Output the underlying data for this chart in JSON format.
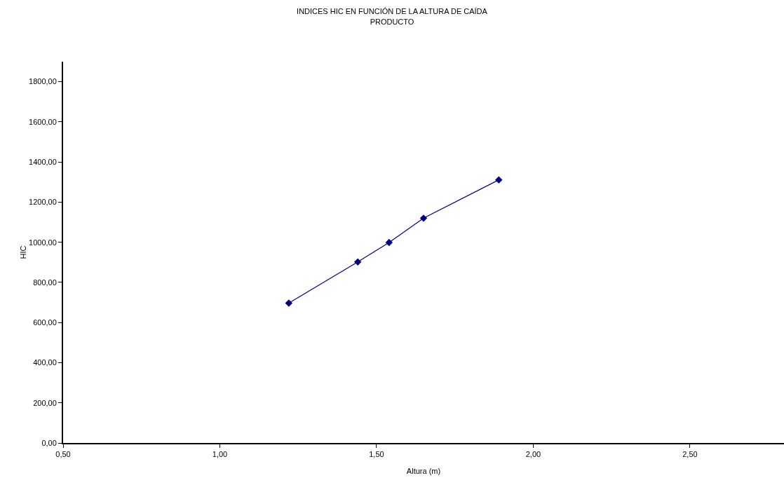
{
  "chart_data": {
    "type": "line",
    "title": "INDICES HIC EN FUNCIÓN DE LA ALTURA DE CAÍDA\nPRODUCTO",
    "xlabel": "Altura (m)",
    "ylabel": "HIC",
    "x": [
      1.22,
      1.44,
      1.54,
      1.65,
      1.89
    ],
    "series": [
      {
        "color": "#000080",
        "values": [
          697,
          902,
          999,
          1120,
          1311
        ]
      }
    ],
    "xlim": [
      0.5,
      2.8
    ],
    "xticks": [
      {
        "value": 0.5,
        "label": "0,50"
      },
      {
        "value": 1,
        "label": "1,00"
      },
      {
        "value": 1.5,
        "label": "1,50"
      },
      {
        "value": 2,
        "label": "2,00"
      },
      {
        "value": 2.5,
        "label": "2,50"
      }
    ],
    "ylim": [
      0,
      1900
    ],
    "yticks": [
      {
        "value": 0,
        "label": "0,00"
      },
      {
        "value": 200,
        "label": "200,00"
      },
      {
        "value": 400,
        "label": "400,00"
      },
      {
        "value": 600,
        "label": "600,00"
      },
      {
        "value": 800,
        "label": "800,00"
      },
      {
        "value": 1000,
        "label": "1000,00"
      },
      {
        "value": 1200,
        "label": "1200,00"
      },
      {
        "value": 1400,
        "label": "1400,00"
      },
      {
        "value": 1600,
        "label": "1600,00"
      },
      {
        "value": 1800,
        "label": "1800,00"
      }
    ],
    "grid": false,
    "marker": "diamond",
    "line_style": "solid"
  }
}
